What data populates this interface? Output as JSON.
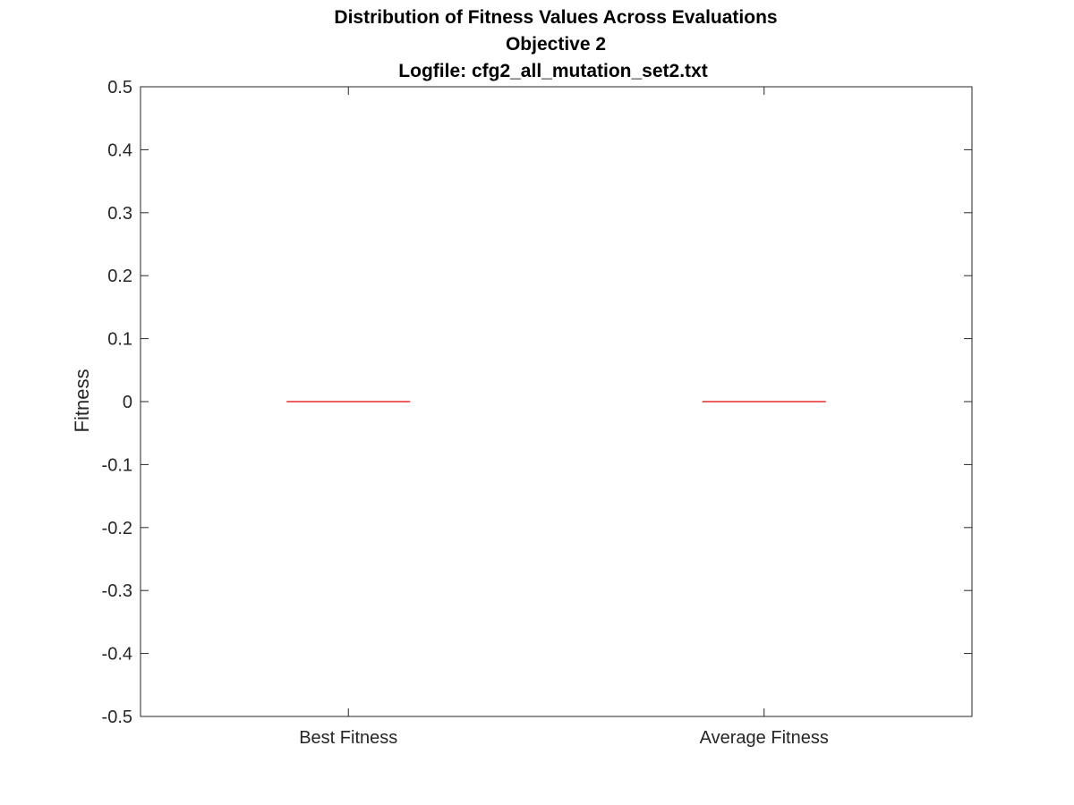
{
  "chart_data": {
    "type": "boxplot",
    "title": [
      "Distribution of Fitness Values Across Evaluations",
      "Objective 2",
      "Logfile: cfg2_all_mutation_set2.txt"
    ],
    "xlabel": "",
    "ylabel": "Fitness",
    "categories": [
      "Best Fitness",
      "Average Fitness"
    ],
    "boxes": [
      {
        "category": "Best Fitness",
        "min": 0,
        "q1": 0,
        "median": 0,
        "q3": 0,
        "max": 0
      },
      {
        "category": "Average Fitness",
        "min": 0,
        "q1": 0,
        "median": 0,
        "q3": 0,
        "max": 0
      }
    ],
    "ylim": [
      -0.5,
      0.5
    ],
    "yticks": [
      -0.5,
      -0.4,
      -0.3,
      -0.2,
      -0.1,
      0,
      0.1,
      0.2,
      0.3,
      0.4,
      0.5
    ],
    "ytick_labels": [
      "-0.5",
      "-0.4",
      "-0.3",
      "-0.2",
      "-0.1",
      "0",
      "0.1",
      "0.2",
      "0.3",
      "0.4",
      "0.5"
    ],
    "grid": false,
    "median_color": "#e00000",
    "axis_color": "#262626"
  }
}
